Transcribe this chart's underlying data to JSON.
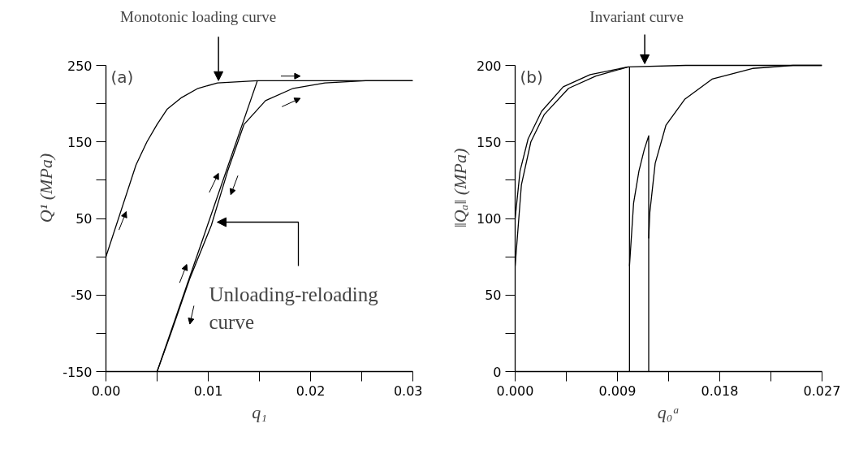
{
  "chart_data": [
    {
      "type": "line",
      "xlabel": "q₁",
      "ylabel": "Q¹ (MPa)",
      "annotations": [
        "(a)",
        {
          "text": "Monotonic loading curve",
          "x": 0.011,
          "y": 228
        },
        "Unloading-reloading curve"
      ],
      "xlim": [
        0,
        0.03
      ],
      "ylim": [
        -150,
        250
      ],
      "xticks": [
        {
          "value": 0,
          "label": "0.00"
        },
        {
          "value": 0.005,
          "label": null
        },
        {
          "value": 0.01,
          "label": "0.01"
        },
        {
          "value": 0.015,
          "label": null
        },
        {
          "value": 0.02,
          "label": "0.02"
        },
        {
          "value": 0.025,
          "label": null
        },
        {
          "value": 0.03,
          "label": "0.03"
        }
      ],
      "yticks": [
        -150,
        {
          "value": -100,
          "label": null
        },
        -50,
        {
          "value": 0,
          "label": null
        },
        50,
        {
          "value": 100,
          "label": null
        },
        150,
        {
          "value": 200,
          "label": null
        },
        250
      ],
      "series": [
        {
          "color": "#000000",
          "x": [
            0,
            0.00294,
            0.004,
            0.005,
            0.006,
            0.0074,
            0.009,
            0.0109,
            0.0148,
            0.02,
            0.03
          ],
          "values": [
            0,
            120,
            150,
            173,
            193,
            208,
            220,
            227,
            230,
            230,
            230
          ]
        },
        {
          "color": "#000000",
          "x": [
            0.0148,
            0.005
          ],
          "values": [
            230,
            -150
          ]
        },
        {
          "color": "#000000",
          "x": [
            0.005,
            0.00635,
            0.00818,
            0.0103,
            0.0119,
            0.0135,
            0.0156,
            0.0183,
            0.0214,
            0.0254,
            0.03
          ],
          "values": [
            -150,
            -100,
            -29,
            41,
            112,
            173,
            204,
            220,
            227,
            230,
            230
          ]
        }
      ]
    },
    {
      "type": "line",
      "xlabel": "q₀ᵃ",
      "ylabel": "‖Qₐ‖ (MPa)",
      "annotations": [
        "(b)",
        {
          "text": "Invariant curve",
          "x": 0.0114,
          "y": 200
        }
      ],
      "xlim": [
        0,
        0.027
      ],
      "ylim": [
        0,
        200
      ],
      "xticks": [
        {
          "value": 0,
          "label": "0.000"
        },
        {
          "value": 0.0045,
          "label": null
        },
        {
          "value": 0.009,
          "label": "0.009"
        },
        {
          "value": 0.0135,
          "label": null
        },
        {
          "value": 0.018,
          "label": "0.018"
        },
        {
          "value": 0.0225,
          "label": null
        },
        {
          "value": 0.027,
          "label": "0.027"
        }
      ],
      "yticks": [
        0,
        {
          "value": 25,
          "label": null
        },
        50,
        {
          "value": 75,
          "label": null
        },
        100,
        {
          "value": 125,
          "label": null
        },
        150,
        {
          "value": 175,
          "label": null
        },
        200
      ],
      "series": [
        {
          "color": "#000000",
          "x": [
            0,
            0.00043,
            0.00114,
            0.00233,
            0.00423,
            0.0066,
            0.00994,
            0.015,
            0.027
          ],
          "values": [
            100,
            131,
            152,
            170,
            186,
            194,
            199,
            200,
            200
          ]
        },
        {
          "color": "#000000",
          "x": [
            0,
            0.00055,
            0.00138,
            0.00257,
            0.0047,
            0.0071,
            0.00994
          ],
          "values": [
            69,
            122,
            150,
            168,
            185,
            193,
            199
          ]
        },
        {
          "color": "#000000",
          "x": [
            0.01006,
            0.01006
          ],
          "values": [
            0,
            199
          ]
        },
        {
          "color": "#000000",
          "x": [
            0.01006,
            0.01042,
            0.01089,
            0.01136,
            0.01175,
            0.01175
          ],
          "values": [
            69,
            110,
            131,
            145,
            154,
            0
          ]
        },
        {
          "color": "#000000",
          "x": [
            0.01175,
            0.01185,
            0.01232,
            0.01327,
            0.01494,
            0.01732,
            0.02088,
            0.02445,
            0.027
          ],
          "values": [
            87,
            104,
            136,
            161,
            178,
            191,
            198,
            200,
            200
          ]
        }
      ]
    }
  ]
}
